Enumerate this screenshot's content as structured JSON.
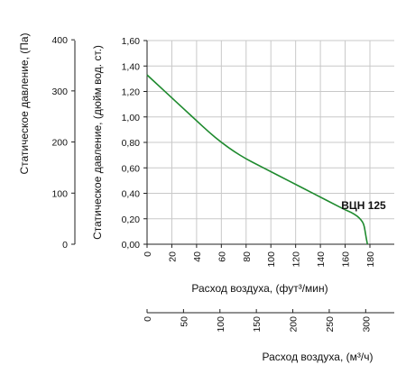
{
  "chart_data": {
    "type": "line",
    "series": [
      {
        "name": "ВЦН 125",
        "color": "#1e8a2e",
        "x": [
          0,
          10,
          20,
          30,
          40,
          50,
          60,
          70,
          80,
          90,
          100,
          110,
          120,
          130,
          140,
          150,
          160,
          165,
          170,
          173,
          175,
          176,
          177,
          178
        ],
        "y": [
          1.33,
          1.24,
          1.15,
          1.06,
          0.97,
          0.88,
          0.8,
          0.73,
          0.67,
          0.62,
          0.57,
          0.52,
          0.47,
          0.42,
          0.37,
          0.32,
          0.27,
          0.25,
          0.22,
          0.19,
          0.16,
          0.11,
          0.05,
          0.0
        ]
      }
    ],
    "x_axis_primary": {
      "label": "Расход воздуха, (фут³/мин)",
      "ticks": [
        "0",
        "20",
        "40",
        "60",
        "80",
        "100",
        "120",
        "140",
        "160",
        "180"
      ],
      "range": [
        0,
        180
      ]
    },
    "x_axis_secondary": {
      "label": "Расход воздуха, (м³/ч)",
      "ticks": [
        "0",
        "50",
        "100",
        "150",
        "200",
        "250",
        "300"
      ],
      "range": [
        0,
        305.8
      ]
    },
    "y_axis_primary": {
      "label": "Статическое давление, (дюйм вод. ст.)",
      "ticks": [
        "0,00",
        "0,20",
        "0,40",
        "0,60",
        "0,80",
        "1,00",
        "1,20",
        "1,40",
        "1,60"
      ],
      "range": [
        0,
        1.6
      ]
    },
    "y_axis_secondary": {
      "label": "Статическое давление, (Па)",
      "ticks": [
        "0",
        "100",
        "200",
        "300",
        "400"
      ],
      "range": [
        0,
        398.5
      ]
    },
    "grid": true,
    "grid_color": "#c8c8c8"
  }
}
